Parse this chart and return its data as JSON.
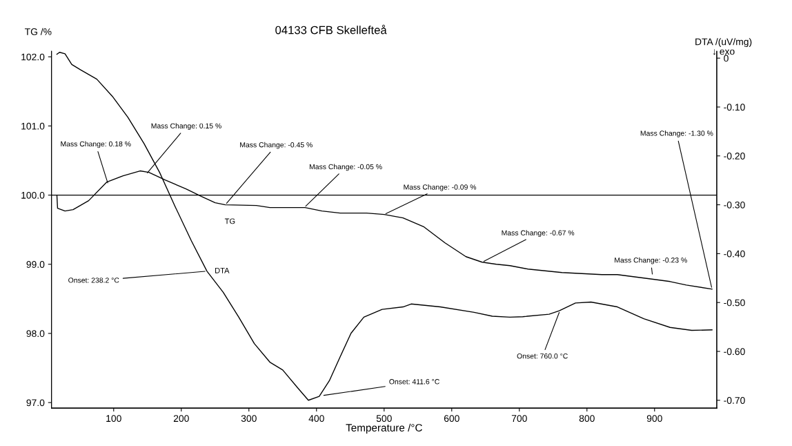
{
  "chart_data": {
    "type": "line",
    "title": "04133 CFB Skellefteå",
    "xlabel": "Temperature /°C",
    "ylabel": "TG /%",
    "y2label": "DTA /(uV/mg)\n↓ exo",
    "xlim": [
      8,
      992
    ],
    "xticks": [
      100,
      200,
      300,
      400,
      500,
      600,
      700,
      800,
      900
    ],
    "ylim": [
      96.92,
      102.08
    ],
    "yticks": [
      {
        "value": 97,
        "label": "97.0"
      },
      {
        "value": 98,
        "label": "98.0"
      },
      {
        "value": 99,
        "label": "99.0"
      },
      {
        "value": 100,
        "label": "100.0"
      },
      {
        "value": 101,
        "label": "101.0"
      },
      {
        "value": 102,
        "label": "102.0"
      }
    ],
    "y2lim": [
      -0.716,
      0.014
    ],
    "y2ticks": [
      0,
      {
        "value": -0.1,
        "label": "-0.10"
      },
      {
        "value": -0.2,
        "label": "-0.20"
      },
      {
        "value": -0.3,
        "label": "-0.30"
      },
      {
        "value": -0.4,
        "label": "-0.40"
      },
      {
        "value": -0.5,
        "label": "-0.50"
      },
      {
        "value": -0.6,
        "label": "-0.60"
      },
      {
        "value": -0.7,
        "label": "-0.70"
      }
    ],
    "grid": false,
    "legend": false,
    "marker": "none",
    "line_style": "solid",
    "series": [
      {
        "name": "TG",
        "color": "#000000",
        "x": [
          16,
          17,
          28,
          40,
          63,
          90,
          114,
          139,
          152,
          176,
          207,
          230,
          250,
          265,
          311,
          331,
          383,
          408,
          435,
          474,
          500,
          528,
          559,
          590,
          621,
          645,
          666,
          686,
          713,
          763,
          822,
          845,
          900,
          923,
          947,
          985
        ],
        "values": [
          100.0,
          99.81,
          99.77,
          99.79,
          99.92,
          100.19,
          100.28,
          100.35,
          100.33,
          100.22,
          100.09,
          99.98,
          99.89,
          99.86,
          99.85,
          99.82,
          99.82,
          99.77,
          99.74,
          99.74,
          99.72,
          99.67,
          99.54,
          99.31,
          99.11,
          99.03,
          99.0,
          98.98,
          98.93,
          98.88,
          98.85,
          98.85,
          98.78,
          98.75,
          98.7,
          98.64
        ]
      },
      {
        "name": "DTA",
        "color": "#000000",
        "axis": "y2",
        "x": [
          16,
          20,
          28,
          38,
          51,
          75,
          98,
          121,
          145,
          168,
          191,
          215,
          238,
          262,
          285,
          308,
          331,
          350,
          373,
          388,
          404,
          419,
          435,
          451,
          470,
          497,
          528,
          540,
          583,
          633,
          660,
          686,
          705,
          744,
          759,
          783,
          806,
          845,
          884,
          923,
          955,
          985
        ],
        "values": [
          0.008,
          0.012,
          0.009,
          -0.013,
          -0.024,
          -0.043,
          -0.078,
          -0.121,
          -0.175,
          -0.234,
          -0.304,
          -0.374,
          -0.436,
          -0.479,
          -0.53,
          -0.584,
          -0.622,
          -0.638,
          -0.676,
          -0.7,
          -0.692,
          -0.66,
          -0.611,
          -0.563,
          -0.53,
          -0.514,
          -0.509,
          -0.503,
          -0.509,
          -0.52,
          -0.528,
          -0.53,
          -0.529,
          -0.524,
          -0.517,
          -0.501,
          -0.499,
          -0.509,
          -0.533,
          -0.551,
          -0.557,
          -0.556
        ]
      }
    ],
    "ref_lines": [
      {
        "axis": "y",
        "value": 100.0,
        "color": "#000000",
        "line_style": "solid"
      }
    ],
    "annotations": [
      {
        "text": "Mass Change: 0.18 %",
        "x": 92,
        "y": 100.15
      },
      {
        "text": "Mass Change: 0.15 %",
        "x": 148,
        "y": 100.3
      },
      {
        "text": "Mass Change: -0.45 %",
        "x": 265,
        "y": 99.86
      },
      {
        "text": "Mass Change: -0.05 %",
        "x": 382,
        "y": 99.82
      },
      {
        "text": "Mass Change: -0.09 %",
        "x": 500,
        "y": 99.72
      },
      {
        "text": "Mass Change: -0.67 %",
        "x": 645,
        "y": 99.03
      },
      {
        "text": "Mass Change: -0.23 %",
        "x": 897,
        "y": 98.83
      },
      {
        "text": "Mass Change: -1.30 %",
        "x": 985,
        "y": 98.64
      },
      {
        "text": "Onset: 238.2 °C",
        "x": 238,
        "y": 98.9
      },
      {
        "text": "Onset: 411.6 °C",
        "x": 408,
        "y": 97.1
      },
      {
        "text": "Onset: 760.0 °C",
        "x": 760,
        "y": 98.33
      }
    ]
  }
}
